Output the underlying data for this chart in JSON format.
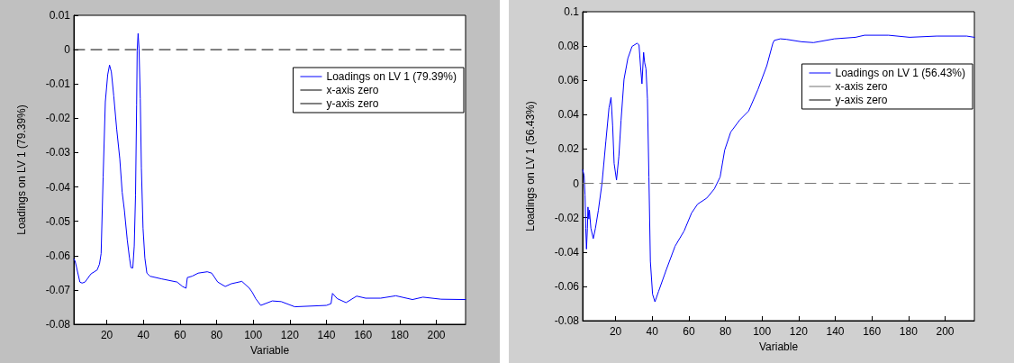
{
  "chart_data": [
    {
      "type": "line",
      "xlabel": "Variable",
      "ylabel": "Loadings on LV 1 (79.39%)",
      "xlim": [
        2,
        216
      ],
      "xticks": [
        20,
        40,
        60,
        80,
        100,
        120,
        140,
        160,
        180,
        200
      ],
      "ylim": [
        -0.08,
        0.01
      ],
      "yticks": [
        -0.08,
        -0.07,
        -0.06,
        -0.05,
        -0.04,
        -0.03,
        -0.02,
        -0.01,
        0,
        0.01
      ],
      "grid": false,
      "legend": "top right",
      "marker": "none",
      "series": [
        {
          "name": "Loadings on LV 1 (79.39%)",
          "color": "#0000ff",
          "line_style": "solid",
          "x": [
            2,
            2.7,
            5.3,
            6.5,
            8.1,
            11.4,
            14.7,
            16,
            16.9,
            18,
            19.2,
            20.5,
            21.5,
            22.5,
            23.8,
            25.4,
            27.1,
            28.4,
            29.6,
            31.2,
            32.4,
            33.2,
            34.2,
            35,
            35.7,
            36.3,
            36.6,
            37.1,
            37.6,
            38.3,
            38.9,
            39.8,
            40.8,
            41.9,
            43.6,
            50.1,
            58.4,
            61.4,
            63.3,
            64,
            66.6,
            69.9,
            74.9,
            77.3,
            80.6,
            84.7,
            88,
            93.8,
            97.9,
            99.6,
            101.3,
            104.1,
            110.4,
            115.3,
            122.7,
            140,
            142.5,
            143.3,
            145.8,
            150.7,
            156.5,
            161.4,
            169.6,
            177.9,
            187,
            192.7,
            202.6,
            216
          ],
          "values": [
            -0.061,
            -0.0616,
            -0.0677,
            -0.068,
            -0.0677,
            -0.0653,
            -0.0642,
            -0.0625,
            -0.0594,
            -0.0371,
            -0.0152,
            -0.0073,
            -0.0045,
            -0.0065,
            -0.0135,
            -0.0231,
            -0.0318,
            -0.0415,
            -0.0467,
            -0.0555,
            -0.0607,
            -0.0635,
            -0.0636,
            -0.0572,
            -0.0423,
            -0.0161,
            -0.0004,
            0.0047,
            0.0005,
            -0.0143,
            -0.0345,
            -0.052,
            -0.0607,
            -0.0651,
            -0.066,
            -0.0668,
            -0.0677,
            -0.069,
            -0.0695,
            -0.0664,
            -0.066,
            -0.0651,
            -0.0647,
            -0.0651,
            -0.0677,
            -0.069,
            -0.0682,
            -0.0675,
            -0.0695,
            -0.0708,
            -0.0725,
            -0.0745,
            -0.0732,
            -0.0734,
            -0.0749,
            -0.0745,
            -0.074,
            -0.071,
            -0.0725,
            -0.0737,
            -0.0718,
            -0.0724,
            -0.0724,
            -0.0717,
            -0.0728,
            -0.0721,
            -0.0727,
            -0.0728
          ]
        },
        {
          "name": "x-axis zero",
          "color": "#000000",
          "line_style": "dashed",
          "x": [
            2,
            216
          ],
          "values": [
            0,
            0
          ]
        },
        {
          "name": "y-axis zero",
          "color": "#000000",
          "line_style": "solid"
        }
      ]
    },
    {
      "type": "line",
      "xlabel": "Variable",
      "ylabel": "Loadings on LV 1 (56.43%)",
      "xlim": [
        2,
        216
      ],
      "xticks": [
        20,
        40,
        60,
        80,
        100,
        120,
        140,
        160,
        180,
        200
      ],
      "ylim": [
        -0.08,
        0.1
      ],
      "yticks": [
        -0.08,
        -0.06,
        -0.04,
        -0.02,
        0,
        0.02,
        0.04,
        0.06,
        0.08,
        0.1
      ],
      "grid": false,
      "legend": "top right",
      "marker": "none",
      "series": [
        {
          "name": "Loadings on LV 1 (56.43%)",
          "color": "#0000ff",
          "line_style": "solid",
          "x": [
            2,
            2.8,
            3.3,
            3.7,
            4.1,
            4.6,
            4.9,
            5.4,
            5.7,
            6.5,
            7.8,
            9,
            10.6,
            12.6,
            14.7,
            16.4,
            17.5,
            18.4,
            19.2,
            20.5,
            21.8,
            23,
            24.6,
            26.7,
            29,
            31.7,
            32.8,
            33.6,
            34.4,
            35.3,
            35.9,
            36.6,
            37.4,
            38.2,
            39,
            40.2,
            41.5,
            43.5,
            47.6,
            52.5,
            57.4,
            61.5,
            64.8,
            69.8,
            73.9,
            77.1,
            79.6,
            82.9,
            87.8,
            92.7,
            97.7,
            102.6,
            105.9,
            106.7,
            110,
            113.3,
            121.5,
            128.1,
            139.6,
            151.1,
            156,
            169.1,
            180.6,
            195.4,
            211.8,
            216
          ],
          "values": [
            0.008,
            0.0046,
            -0.0068,
            -0.0261,
            -0.0383,
            -0.0261,
            -0.0138,
            -0.0208,
            -0.0156,
            -0.0261,
            -0.0322,
            -0.0261,
            -0.0156,
            0.0002,
            0.0247,
            0.044,
            0.0501,
            0.0334,
            0.0116,
            0.0019,
            0.0159,
            0.0369,
            0.0606,
            0.0728,
            0.0798,
            0.0816,
            0.0807,
            0.0685,
            0.058,
            0.0763,
            0.0702,
            0.0667,
            0.0492,
            0.0037,
            -0.0454,
            -0.0646,
            -0.069,
            -0.0629,
            -0.0506,
            -0.0366,
            -0.0278,
            -0.0173,
            -0.0121,
            -0.0086,
            -0.0033,
            0.0037,
            0.0194,
            0.0299,
            0.0369,
            0.0422,
            0.0545,
            0.0685,
            0.0816,
            0.0833,
            0.0842,
            0.0839,
            0.0825,
            0.082,
            0.0842,
            0.0851,
            0.0863,
            0.0863,
            0.0851,
            0.0858,
            0.0858,
            0.0851
          ]
        },
        {
          "name": "x-axis zero",
          "color": "#707070",
          "line_style": "dashed",
          "x": [
            2,
            216
          ],
          "values": [
            0,
            0
          ]
        },
        {
          "name": "y-axis zero",
          "color": "#000000",
          "line_style": "solid"
        }
      ]
    }
  ]
}
